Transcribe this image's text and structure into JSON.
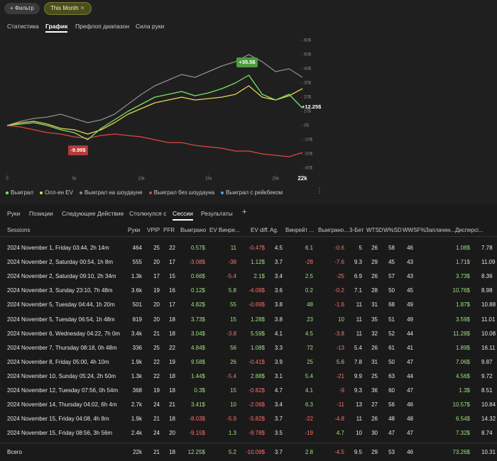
{
  "filter_bar": {
    "filter_button": "+ Фильтр",
    "chip": "This Month"
  },
  "tabs": [
    "Статистика",
    "График",
    "Префлоп диапазон",
    "Сила руки"
  ],
  "chart_data": {
    "type": "line",
    "x": [
      0,
      1000,
      2000,
      3000,
      4000,
      5000,
      6000,
      7000,
      8000,
      9000,
      10000,
      11000,
      12000,
      13000,
      14000,
      15000,
      16000,
      17000,
      18000,
      19000,
      20000,
      21000,
      22000
    ],
    "xlim": [
      0,
      22000
    ],
    "xticks": [
      0,
      {
        "value": 5000,
        "label": "5k"
      },
      {
        "value": 10000,
        "label": "10k"
      },
      {
        "value": 15000,
        "label": "15k"
      },
      {
        "value": 20000,
        "label": "20k"
      },
      {
        "value": 22000,
        "label": "22k"
      }
    ],
    "ylim": [
      -30,
      60
    ],
    "yticks": [
      {
        "value": 60,
        "label": "60$"
      },
      {
        "value": 50,
        "label": "50$"
      },
      {
        "value": 40,
        "label": "40$"
      },
      {
        "value": 30,
        "label": "30$"
      },
      {
        "value": 20,
        "label": "20$"
      },
      {
        "value": 10,
        "label": "10$"
      },
      {
        "value": 0,
        "label": "0$"
      },
      {
        "value": -10,
        "label": "-10$"
      },
      {
        "value": -20,
        "label": "-20$"
      },
      {
        "value": -30,
        "label": "-30$"
      }
    ],
    "grid": false,
    "series": [
      {
        "name": "Выиграл на шоудауне",
        "color": "#8c8c8c",
        "values": [
          0,
          3,
          5,
          6,
          8,
          5,
          2,
          4,
          8,
          15,
          22,
          28,
          32,
          36,
          34,
          38,
          42,
          45,
          50,
          45,
          38,
          40,
          34
        ]
      },
      {
        "name": "Выиграл без шоудауна",
        "color": "#e0473e",
        "values": [
          0,
          -1,
          -3,
          -5,
          -6,
          -8,
          -9,
          -7,
          -6,
          -7,
          -8,
          -10,
          -12,
          -12,
          -14,
          -15,
          -16,
          -18,
          -18,
          -20,
          -21,
          -22,
          -19
        ]
      },
      {
        "name": "Олл-ин EV",
        "color": "#e8d44d",
        "values": [
          0,
          2,
          3,
          1,
          -2,
          -3,
          -6,
          -3,
          2,
          8,
          12,
          16,
          18,
          20,
          18,
          19,
          20,
          22,
          28,
          20,
          18,
          21,
          26
        ]
      },
      {
        "name": "Выиграл",
        "color": "#7be36a",
        "values": [
          0,
          1,
          2,
          0,
          -3,
          -5,
          -9.99,
          -2,
          4,
          10,
          15,
          20,
          22,
          24,
          21,
          23,
          26,
          30,
          35.5,
          22,
          18,
          22,
          12.25
        ]
      },
      {
        "name": "Выиграл с рейкбеком",
        "color": "#4aa3df",
        "values": [
          null,
          null,
          null,
          null,
          null,
          null,
          null,
          null,
          null,
          null,
          null,
          null,
          null,
          null,
          null,
          null,
          null,
          null,
          null,
          null,
          null,
          null,
          null
        ]
      }
    ],
    "legend_order": [
      3,
      2,
      0,
      1,
      4
    ],
    "annotations": [
      {
        "text": "+35.5$",
        "color": "#4e9a3c"
      },
      {
        "text": "-9.99$",
        "color": "#b53a36"
      },
      {
        "text": "+12.25$",
        "color": "#ffffff"
      }
    ]
  },
  "subtabs": [
    "Руки",
    "Позиции",
    "Следующее Действие",
    "Столкнулся с",
    "Сессии",
    "Результаты",
    "+"
  ],
  "table": {
    "columns": [
      "Sessions",
      "Руки",
      "VPIP",
      "PFR",
      "Выиграно",
      "EV Винре...",
      "EV diff.",
      "Ag.",
      "Винрейт ...",
      "Выиграно...",
      "3-Бет",
      "WTSD",
      "W%SD",
      "WWSF%",
      "Заплачен...",
      "Дисперсі..."
    ],
    "rows": [
      [
        "2024 November 1, Friday 03:44, 2h 14m",
        "464",
        "25",
        "22",
        "0.57$",
        "11",
        "-0.47$",
        "4.5",
        "6.1",
        "-0.6",
        "5",
        "26",
        "58",
        "46",
        "1.08$",
        "7.78"
      ],
      [
        "2024 November 2, Saturday 00:54, 1h 8m",
        "555",
        "20",
        "17",
        "-3.08$",
        "-38",
        "1.12$",
        "3.7",
        "-28",
        "-7.6",
        "9.3",
        "29",
        "45",
        "43",
        "1.71$",
        "11.09"
      ],
      [
        "2024 November 2, Saturday 09:10, 2h 34m",
        "1.3k",
        "17",
        "15",
        "0.66$",
        "-5.4",
        "2.1$",
        "3.4",
        "2.5",
        "-25",
        "6.9",
        "26",
        "57",
        "43",
        "3.73$",
        "8.36"
      ],
      [
        "2024 November 3, Sunday 23:10, 7h 48m",
        "3.6k",
        "19",
        "16",
        "0.12$",
        "5.8",
        "-4.09$",
        "3.6",
        "0.2",
        "-0.2",
        "7.1",
        "28",
        "50",
        "45",
        "10.76$",
        "8.98"
      ],
      [
        "2024 November 5, Tuesday 04:44, 1h 20m",
        "501",
        "20",
        "17",
        "4.82$",
        "55",
        "-0.69$",
        "3.8",
        "48",
        "-1.6",
        "11",
        "31",
        "68",
        "49",
        "1.87$",
        "10.88"
      ],
      [
        "2024 November 5, Tuesday 06:54, 1h 48m",
        "819",
        "20",
        "18",
        "3.73$",
        "15",
        "1.28$",
        "3.8",
        "23",
        "10",
        "11",
        "35",
        "51",
        "49",
        "3.59$",
        "11.01"
      ],
      [
        "2024 November 6, Wednesday 04:22, 7h 0m",
        "3.4k",
        "21",
        "18",
        "3.04$",
        "-3.8",
        "5.59$",
        "4.1",
        "4.5",
        "-3.8",
        "11",
        "32",
        "52",
        "44",
        "11.28$",
        "10.08"
      ],
      [
        "2024 November 7, Thursday 08:18, 0h 48m",
        "336",
        "25",
        "22",
        "4.84$",
        "56",
        "1.08$",
        "3.3",
        "72",
        "-13",
        "5.4",
        "26",
        "61",
        "41",
        "1.89$",
        "16.11"
      ],
      [
        "2024 November 8, Friday 05:00, 4h 10m",
        "1.9k",
        "22",
        "19",
        "9.58$",
        "26",
        "-0.41$",
        "3.9",
        "25",
        "5.6",
        "7.8",
        "31",
        "50",
        "47",
        "7.06$",
        "9.87"
      ],
      [
        "2024 November 10, Sunday 05:24, 2h 50m",
        "1.3k",
        "22",
        "18",
        "1.44$",
        "-5.4",
        "2.88$",
        "3.1",
        "5.4",
        "-21",
        "9.9",
        "25",
        "63",
        "44",
        "4.56$",
        "9.72"
      ],
      [
        "2024 November 12, Tuesday 07:56, 0h 54m",
        "368",
        "19",
        "18",
        "0.3$",
        "15",
        "-0.82$",
        "4.7",
        "4.1",
        "-9",
        "9.3",
        "36",
        "60",
        "47",
        "1.3$",
        "8.51"
      ],
      [
        "2024 November 14, Thursday 04:02, 6h 4m",
        "2.7k",
        "24",
        "21",
        "3.41$",
        "10",
        "-2.06$",
        "3.4",
        "6.3",
        "-11",
        "13",
        "27",
        "56",
        "46",
        "10.57$",
        "10.84"
      ],
      [
        "2024 November 15, Friday 04:08, 4h 8m",
        "1.9k",
        "21",
        "18",
        "-8.03$",
        "-5.9",
        "-5.82$",
        "3.7",
        "-22",
        "-4.8",
        "11",
        "26",
        "48",
        "48",
        "6.54$",
        "14.32"
      ],
      [
        "2024 November 15, Friday 08:56, 3h 56m",
        "2.4k",
        "24",
        "20",
        "-9.15$",
        "1.3",
        "-9.78$",
        "3.5",
        "-19",
        "4.7",
        "10",
        "30",
        "47",
        "47",
        "7.32$",
        "8.74"
      ]
    ],
    "total": [
      "Всего",
      "22k",
      "21",
      "18",
      "12.25$",
      "5.2",
      "-10.09$",
      "3.7",
      "2.8",
      "-4.5",
      "9.5",
      "29",
      "53",
      "46",
      "73.26$",
      "10.31"
    ]
  }
}
